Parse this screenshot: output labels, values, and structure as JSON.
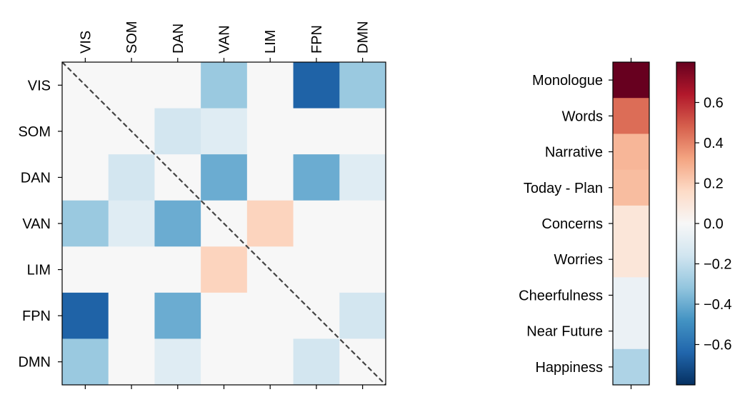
{
  "chart_data": [
    {
      "type": "heatmap",
      "title": "",
      "xlabel": "",
      "ylabel": "",
      "x_tick_labels": [
        "VIS",
        "SOM",
        "DAN",
        "VAN",
        "LIM",
        "FPN",
        "DMN"
      ],
      "y_tick_labels": [
        "VIS",
        "SOM",
        "DAN",
        "VAN",
        "LIM",
        "FPN",
        "DMN"
      ],
      "x_tick_position": "top",
      "diagonal_line": "dashed",
      "grid": false,
      "values": [
        [
          0.0,
          0.0,
          0.0,
          -0.3,
          0.0,
          -0.65,
          -0.3
        ],
        [
          0.0,
          0.0,
          -0.15,
          -0.1,
          0.0,
          0.0,
          0.0
        ],
        [
          0.0,
          -0.15,
          0.0,
          -0.4,
          0.0,
          -0.4,
          -0.1
        ],
        [
          -0.3,
          -0.1,
          -0.4,
          0.0,
          0.18,
          0.0,
          0.0
        ],
        [
          0.0,
          0.0,
          0.0,
          0.18,
          0.0,
          0.0,
          0.0
        ],
        [
          -0.65,
          0.0,
          -0.4,
          0.0,
          0.0,
          0.0,
          -0.15
        ],
        [
          -0.3,
          0.0,
          -0.1,
          0.0,
          0.0,
          -0.15,
          0.0
        ]
      ]
    },
    {
      "type": "heatmap",
      "title": "",
      "xlabel": "",
      "ylabel": "",
      "y_tick_labels": [
        "Monologue",
        "Words",
        "Narrative",
        "Today - Plan",
        "Concerns",
        "Worries",
        "Cheerfulness",
        "Near Future",
        "Happiness"
      ],
      "values": [
        0.8,
        0.45,
        0.27,
        0.25,
        0.1,
        0.1,
        -0.05,
        -0.05,
        -0.25
      ]
    }
  ],
  "colorbar": {
    "colormap": "RdBu_r",
    "range": [
      -0.8,
      0.8
    ],
    "ticks": [
      0.6,
      0.4,
      0.2,
      0.0,
      -0.2,
      -0.4,
      -0.6
    ],
    "tick_labels": [
      "0.6",
      "0.4",
      "0.2",
      "0.0",
      "−0.2",
      "−0.4",
      "−0.6"
    ]
  },
  "colors": {
    "diagonal": "#444444",
    "axis": "#000000"
  }
}
